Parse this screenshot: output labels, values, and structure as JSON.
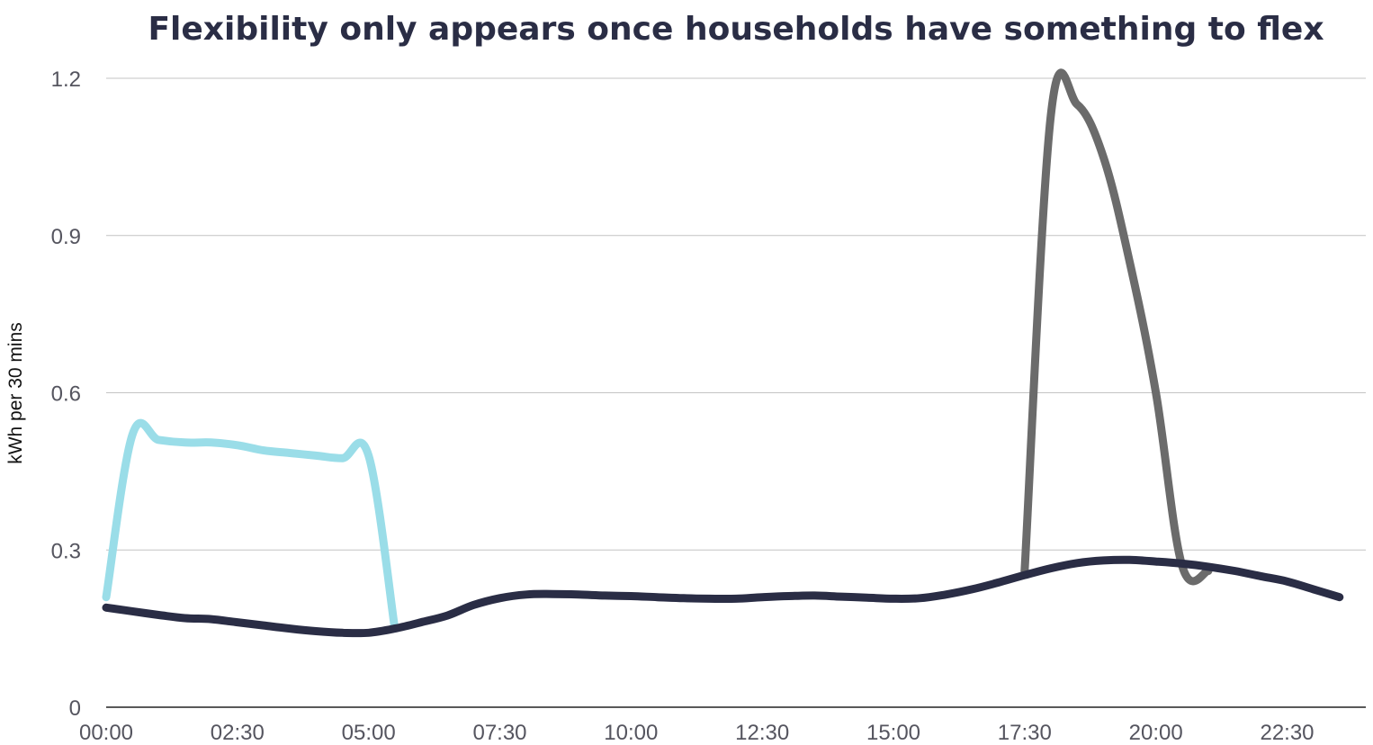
{
  "chart_data": {
    "type": "line",
    "title": "Flexibility only appears once households have something to flex",
    "ylabel": "kWh per 30 mins",
    "xlabel": "",
    "ylim": [
      0,
      1.2
    ],
    "yticks": [
      "0",
      "0.3",
      "0.6",
      "0.9",
      "1.2"
    ],
    "grid": true,
    "legend": "none",
    "x": [
      "00:00",
      "00:30",
      "01:00",
      "01:30",
      "02:00",
      "02:30",
      "03:00",
      "03:30",
      "04:00",
      "04:30",
      "05:00",
      "05:30",
      "06:00",
      "06:30",
      "07:00",
      "07:30",
      "08:00",
      "08:30",
      "09:00",
      "09:30",
      "10:00",
      "10:30",
      "11:00",
      "11:30",
      "12:00",
      "12:30",
      "13:00",
      "13:30",
      "14:00",
      "14:30",
      "15:00",
      "15:30",
      "16:00",
      "16:30",
      "17:00",
      "17:30",
      "18:00",
      "18:30",
      "19:00",
      "19:30",
      "20:00",
      "20:30",
      "21:00",
      "21:30",
      "22:00",
      "22:30",
      "23:00",
      "23:30"
    ],
    "xticks": [
      "00:00",
      "02:30",
      "05:00",
      "07:30",
      "10:00",
      "12:30",
      "15:00",
      "17:30",
      "20:00",
      "22:30"
    ],
    "series": [
      {
        "color": "#9adde8",
        "values": [
          0.21,
          0.52,
          0.51,
          0.505,
          0.505,
          0.5,
          0.49,
          0.485,
          0.48,
          0.475,
          0.48,
          0.15,
          null,
          null,
          null,
          null,
          null,
          null,
          null,
          null,
          null,
          null,
          null,
          null,
          null,
          null,
          null,
          null,
          null,
          null,
          null,
          null,
          null,
          null,
          null,
          null,
          null,
          null,
          null,
          null,
          null,
          null,
          null,
          null,
          null,
          null,
          null,
          null
        ]
      },
      {
        "color": "#6b6b6b",
        "values": [
          null,
          null,
          null,
          null,
          null,
          null,
          null,
          null,
          null,
          null,
          null,
          null,
          null,
          null,
          null,
          null,
          null,
          null,
          null,
          null,
          null,
          null,
          null,
          null,
          null,
          null,
          null,
          null,
          null,
          null,
          null,
          null,
          null,
          null,
          null,
          0.26,
          1.13,
          1.15,
          1.05,
          0.85,
          0.6,
          0.27,
          0.26,
          null,
          null,
          null,
          null,
          null
        ]
      },
      {
        "color": "#2a2d45",
        "values": [
          0.19,
          0.183,
          0.176,
          0.17,
          0.168,
          0.162,
          0.156,
          0.15,
          0.145,
          0.142,
          0.142,
          0.15,
          0.162,
          0.175,
          0.195,
          0.208,
          0.215,
          0.216,
          0.215,
          0.213,
          0.212,
          0.21,
          0.208,
          0.207,
          0.207,
          0.21,
          0.212,
          0.213,
          0.211,
          0.209,
          0.207,
          0.208,
          0.215,
          0.225,
          0.238,
          0.252,
          0.265,
          0.275,
          0.28,
          0.281,
          0.278,
          0.274,
          0.268,
          0.26,
          0.25,
          0.24,
          0.225,
          0.21
        ]
      }
    ]
  }
}
